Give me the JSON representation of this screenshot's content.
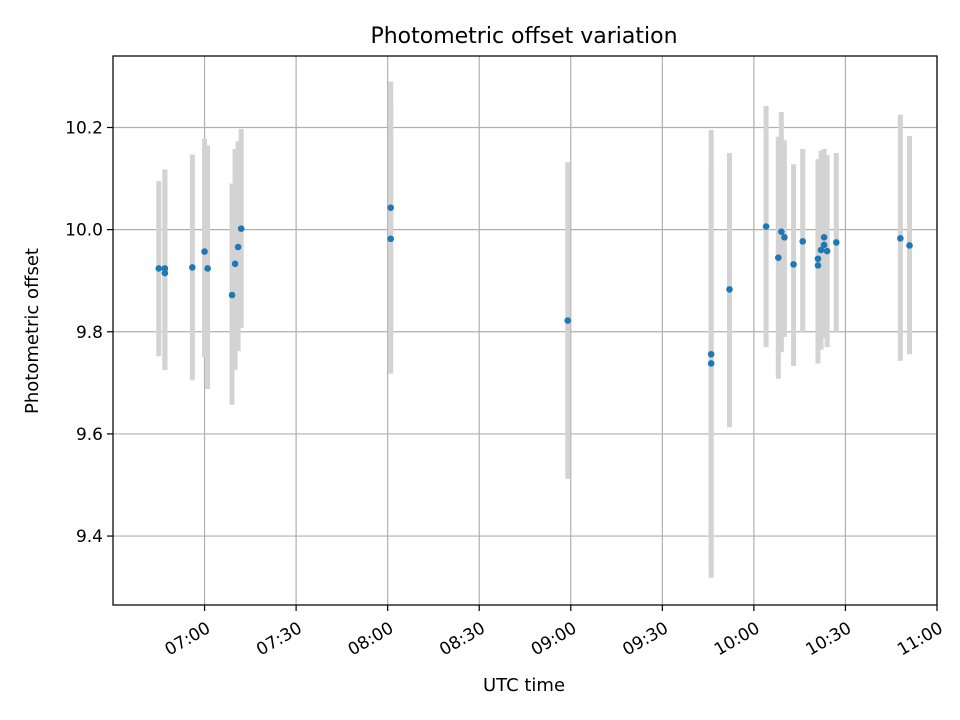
{
  "chart_data": {
    "type": "scatter",
    "title": "Photometric offset variation",
    "xlabel": "UTC time",
    "ylabel": "Photometric offset",
    "xlim": [
      "06:30",
      "11:00"
    ],
    "ylim": [
      9.265,
      10.34
    ],
    "grid": true,
    "x_ticks": [
      "07:00",
      "07:30",
      "08:00",
      "08:30",
      "09:00",
      "09:30",
      "10:00",
      "10:30",
      "11:00"
    ],
    "y_ticks": [
      "9.4",
      "9.6",
      "9.8",
      "10.0",
      "10.2"
    ],
    "colors": {
      "point": "#1f77b4",
      "errorbar": "#d3d3d3",
      "grid": "#b0b0b0"
    },
    "points": [
      {
        "time": "06:45",
        "y": 9.924,
        "ylow": 9.752,
        "yhigh": 10.095
      },
      {
        "time": "06:47",
        "y": 9.915,
        "ylow": 9.725,
        "yhigh": 10.115
      },
      {
        "time": "06:47",
        "y": 9.924,
        "ylow": 9.73,
        "yhigh": 10.118
      },
      {
        "time": "06:56",
        "y": 9.926,
        "ylow": 9.705,
        "yhigh": 10.147
      },
      {
        "time": "07:00",
        "y": 9.957,
        "ylow": 9.75,
        "yhigh": 10.178
      },
      {
        "time": "07:01",
        "y": 9.924,
        "ylow": 9.688,
        "yhigh": 10.165
      },
      {
        "time": "07:09",
        "y": 9.872,
        "ylow": 9.657,
        "yhigh": 10.09
      },
      {
        "time": "07:10",
        "y": 9.933,
        "ylow": 9.725,
        "yhigh": 10.158
      },
      {
        "time": "07:11",
        "y": 9.966,
        "ylow": 9.762,
        "yhigh": 10.173
      },
      {
        "time": "07:12",
        "y": 10.002,
        "ylow": 9.808,
        "yhigh": 10.197
      },
      {
        "time": "08:01",
        "y": 10.043,
        "ylow": 9.795,
        "yhigh": 10.29
      },
      {
        "time": "08:01",
        "y": 9.982,
        "ylow": 9.718,
        "yhigh": 10.248
      },
      {
        "time": "08:59",
        "y": 9.822,
        "ylow": 9.512,
        "yhigh": 10.132
      },
      {
        "time": "09:46",
        "y": 9.738,
        "ylow": 9.35,
        "yhigh": 10.125
      },
      {
        "time": "09:46",
        "y": 9.756,
        "ylow": 9.318,
        "yhigh": 10.195
      },
      {
        "time": "09:52",
        "y": 9.883,
        "ylow": 9.613,
        "yhigh": 10.15
      },
      {
        "time": "10:04",
        "y": 10.006,
        "ylow": 9.77,
        "yhigh": 10.242
      },
      {
        "time": "10:08",
        "y": 9.945,
        "ylow": 9.708,
        "yhigh": 10.182
      },
      {
        "time": "10:09",
        "y": 9.996,
        "ylow": 9.76,
        "yhigh": 10.23
      },
      {
        "time": "10:10",
        "y": 9.985,
        "ylow": 9.79,
        "yhigh": 10.175
      },
      {
        "time": "10:13",
        "y": 9.932,
        "ylow": 9.733,
        "yhigh": 10.128
      },
      {
        "time": "10:16",
        "y": 9.977,
        "ylow": 9.798,
        "yhigh": 10.158
      },
      {
        "time": "10:21",
        "y": 9.93,
        "ylow": 9.738,
        "yhigh": 10.122
      },
      {
        "time": "10:21",
        "y": 9.943,
        "ylow": 9.75,
        "yhigh": 10.138
      },
      {
        "time": "10:22",
        "y": 9.96,
        "ylow": 9.765,
        "yhigh": 10.155
      },
      {
        "time": "10:23",
        "y": 9.97,
        "ylow": 9.788,
        "yhigh": 10.152
      },
      {
        "time": "10:23",
        "y": 9.985,
        "ylow": 9.812,
        "yhigh": 10.158
      },
      {
        "time": "10:24",
        "y": 9.958,
        "ylow": 9.77,
        "yhigh": 10.146
      },
      {
        "time": "10:27",
        "y": 9.975,
        "ylow": 9.8,
        "yhigh": 10.15
      },
      {
        "time": "10:48",
        "y": 9.983,
        "ylow": 9.743,
        "yhigh": 10.225
      },
      {
        "time": "10:51",
        "y": 9.969,
        "ylow": 9.756,
        "yhigh": 10.183
      }
    ]
  }
}
